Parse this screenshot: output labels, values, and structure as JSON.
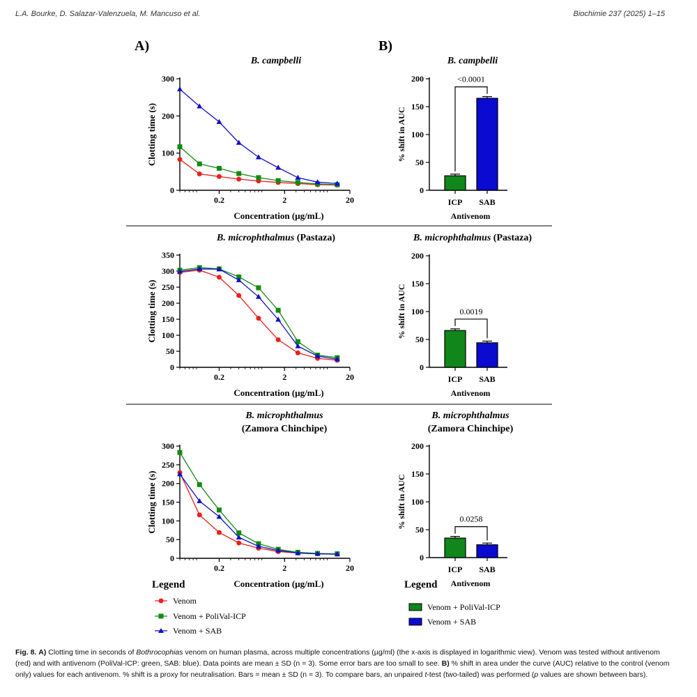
{
  "header": {
    "authors": "L.A. Bourke, D. Salazar-Valenzuela, M. Mancuso et al.",
    "journal": "Biochimie 237 (2025) 1–15"
  },
  "panel_labels": {
    "a": "A)",
    "b": "B)"
  },
  "colors": {
    "venom": "#e8211c",
    "icp": "#138a13",
    "sab": "#1010c8",
    "icp_bar": "#11861a",
    "sab_bar": "#0a0ad0"
  },
  "legend_a": {
    "title": "Legend",
    "items": [
      "Venom",
      "Venom + PoliVal-ICP",
      "Venom + SAB"
    ]
  },
  "legend_b": {
    "title": "Legend",
    "items": [
      "Venom + PoliVal-ICP",
      "Venom + SAB"
    ]
  },
  "caption": {
    "fig_label": "Fig. 8.",
    "a_label": "A)",
    "a_text_1": "Clotting time in seconds of",
    "genus": "Bothrocophias",
    "a_text_2": "venom on human plasma, across multiple concentrations (µg/ml) (the x-axis is displayed in logarithmic view). Venom was tested without antivenom (red) and with antivenom (PoliVal-ICP: green, SAB: blue). Data points are mean ± SD (n = 3). Some error bars are too small to see.",
    "b_label": "B)",
    "b_text_1": "% shift in area under the curve (AUC) relative to the control (venom only) values for each antivenom. % shift is a proxy for neutralisation. Bars = mean ± SD (n = 3). To compare bars, an unpaired",
    "t_italic": "t",
    "b_text_2": "-test (two-tailed) was performed (",
    "p_italic": "p",
    "b_text_3": "values are shown between bars)."
  },
  "chart_data": [
    {
      "type": "line",
      "panel": "A",
      "title": "B. campbelli",
      "xlabel": "Concentration (µg/mL)",
      "ylabel": "Clotting time (s)",
      "xscale": "log",
      "xlim": [
        0.05,
        20
      ],
      "x_ticks": [
        "0.2",
        "2",
        "20"
      ],
      "ylim": [
        0,
        300
      ],
      "y_ticks": [
        "0",
        "100",
        "200",
        "300"
      ],
      "x": [
        0.05,
        0.1,
        0.2,
        0.4,
        0.8,
        1.6,
        3.2,
        6.4,
        12.8
      ],
      "series": [
        {
          "name": "Venom",
          "values": [
            83,
            44,
            37,
            30,
            25,
            21,
            18,
            15,
            14
          ]
        },
        {
          "name": "Venom + PoliVal-ICP",
          "values": [
            117,
            71,
            59,
            45,
            34,
            26,
            21,
            17,
            15
          ]
        },
        {
          "name": "Venom + SAB",
          "values": [
            272,
            226,
            184,
            128,
            89,
            61,
            34,
            22,
            18
          ]
        }
      ]
    },
    {
      "type": "line",
      "panel": "A",
      "title": "B. microphthalmus (Pastaza)",
      "xlabel": "Concentration (µg/mL)",
      "ylabel": "Clotting time (s)",
      "xscale": "log",
      "xlim": [
        0.05,
        20
      ],
      "x_ticks": [
        "0.2",
        "2",
        "20"
      ],
      "ylim": [
        0,
        350
      ],
      "y_ticks": [
        "0",
        "50",
        "100",
        "150",
        "200",
        "250",
        "300",
        "350"
      ],
      "x": [
        0.05,
        0.1,
        0.2,
        0.4,
        0.8,
        1.6,
        3.2,
        6.4,
        12.8
      ],
      "series": [
        {
          "name": "Venom",
          "values": [
            296,
            303,
            281,
            224,
            153,
            86,
            45,
            28,
            22
          ]
        },
        {
          "name": "Venom + PoliVal-ICP",
          "values": [
            303,
            311,
            307,
            282,
            248,
            178,
            80,
            38,
            30
          ]
        },
        {
          "name": "Venom + SAB",
          "values": [
            299,
            307,
            306,
            272,
            220,
            149,
            66,
            35,
            25
          ]
        }
      ]
    },
    {
      "type": "line",
      "panel": "A",
      "title": "B. microphthalmus (Zamora Chinchipe)",
      "xlabel": "Concentration (µg/mL)",
      "ylabel": "Clotting time (s)",
      "xscale": "log",
      "xlim": [
        0.05,
        20
      ],
      "x_ticks": [
        "0.2",
        "2",
        "20"
      ],
      "ylim": [
        0,
        300
      ],
      "y_ticks": [
        "0",
        "50",
        "100",
        "150",
        "200",
        "250",
        "300"
      ],
      "x": [
        0.05,
        0.1,
        0.2,
        0.4,
        0.8,
        1.6,
        3.2,
        6.4,
        12.8
      ],
      "series": [
        {
          "name": "Venom",
          "values": [
            229,
            116,
            69,
            41,
            27,
            18,
            14,
            12,
            11
          ]
        },
        {
          "name": "Venom + PoliVal-ICP",
          "values": [
            283,
            197,
            129,
            68,
            39,
            24,
            16,
            13,
            12
          ]
        },
        {
          "name": "Venom + SAB",
          "values": [
            225,
            153,
            111,
            56,
            32,
            21,
            14,
            12,
            11
          ]
        }
      ]
    },
    {
      "type": "bar",
      "panel": "B",
      "title": "B. campbelli",
      "xlabel": "Antivenom",
      "ylabel": "% shift in AUC",
      "categories": [
        "ICP",
        "SAB"
      ],
      "values": [
        26,
        165
      ],
      "ylim": [
        0,
        200
      ],
      "y_ticks": [
        "0",
        "50",
        "100",
        "150",
        "200"
      ],
      "annotation": "<0.0001"
    },
    {
      "type": "bar",
      "panel": "B",
      "title": "B. microphthalmus (Pastaza)",
      "xlabel": "Antivenom",
      "ylabel": "% shift in AUC",
      "categories": [
        "ICP",
        "SAB"
      ],
      "values": [
        66,
        44
      ],
      "ylim": [
        0,
        200
      ],
      "y_ticks": [
        "0",
        "50",
        "100",
        "150",
        "200"
      ],
      "annotation": "0.0019"
    },
    {
      "type": "bar",
      "panel": "B",
      "title": "B. microphthalmus (Zamora Chinchipe)",
      "xlabel": "Antivenom",
      "ylabel": "% shift in AUC",
      "categories": [
        "ICP",
        "SAB"
      ],
      "values": [
        35,
        23
      ],
      "ylim": [
        0,
        200
      ],
      "y_ticks": [
        "0",
        "50",
        "100",
        "150",
        "200"
      ],
      "annotation": "0.0258"
    }
  ]
}
